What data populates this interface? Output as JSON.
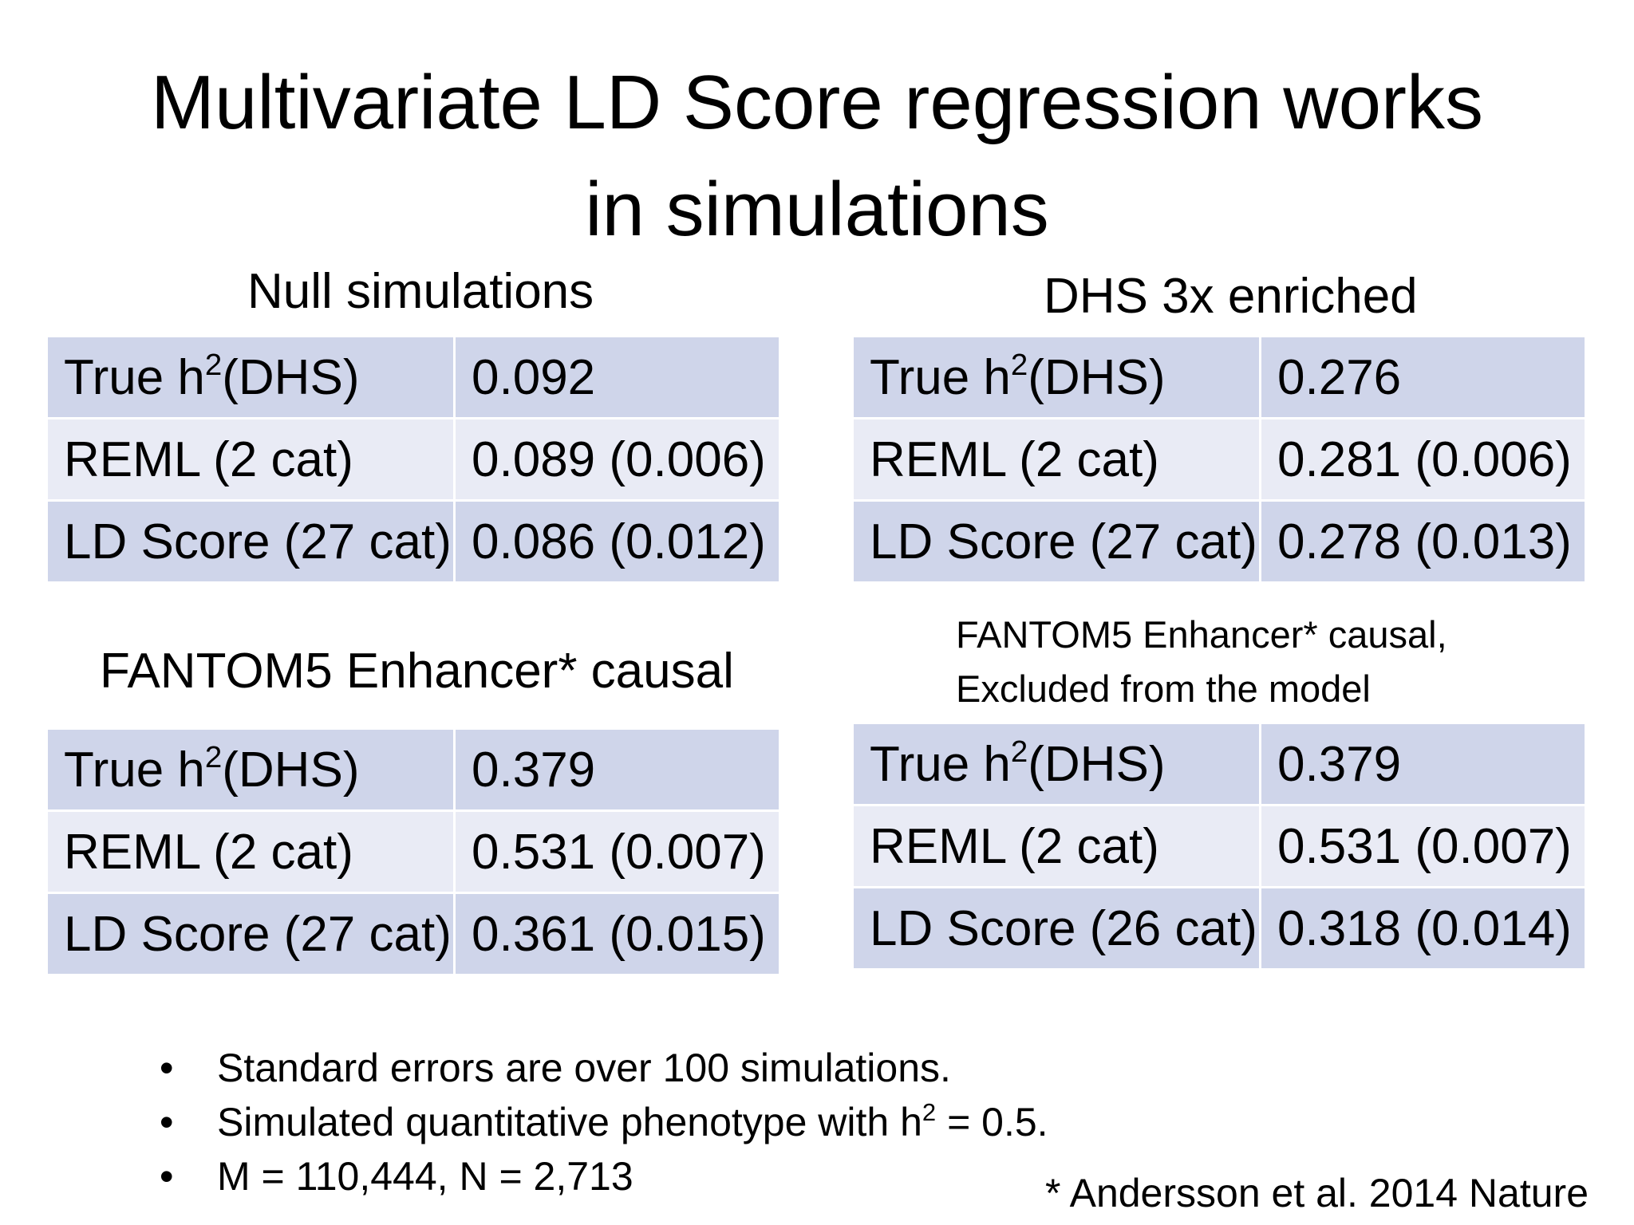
{
  "slide": {
    "title_line1": "Multivariate LD Score regression works",
    "title_line2": "in simulations"
  },
  "tables": [
    {
      "caption": "Null simulations",
      "rows": [
        {
          "label_pre": "True h",
          "label_sup": "2",
          "label_post": "(DHS)",
          "value": "0.092"
        },
        {
          "label": "REML (2 cat)",
          "value": "0.089 (0.006)"
        },
        {
          "label": "LD Score (27 cat)",
          "value": "0.086 (0.012)"
        }
      ]
    },
    {
      "caption": "DHS 3x enriched",
      "rows": [
        {
          "label_pre": "True h",
          "label_sup": "2",
          "label_post": "(DHS)",
          "value": "0.276"
        },
        {
          "label": "REML (2 cat)",
          "value": "0.281 (0.006)"
        },
        {
          "label": "LD Score (27 cat)",
          "value": "0.278 (0.013)"
        }
      ]
    },
    {
      "caption": "FANTOM5 Enhancer* causal",
      "rows": [
        {
          "label_pre": "True h",
          "label_sup": "2",
          "label_post": "(DHS)",
          "value": "0.379"
        },
        {
          "label": "REML (2 cat)",
          "value": "0.531 (0.007)"
        },
        {
          "label": "LD Score (27 cat)",
          "value": "0.361 (0.015)"
        }
      ]
    },
    {
      "caption_line1": "FANTOM5 Enhancer* causal,",
      "caption_line2": "Excluded from the model",
      "rows": [
        {
          "label_pre": "True h",
          "label_sup": "2",
          "label_post": "(DHS)",
          "value": "0.379"
        },
        {
          "label": "REML (2 cat)",
          "value": "0.531 (0.007)"
        },
        {
          "label": "LD Score (26 cat)",
          "value": "0.318 (0.014)"
        }
      ]
    }
  ],
  "bullets": [
    {
      "text": "Standard errors are over 100 simulations."
    },
    {
      "pre": "Simulated quantitative phenotype with h",
      "sup": "2",
      "post": " = 0.5."
    },
    {
      "text": "M = 110,444, N = 2,713"
    }
  ],
  "footnote": "* Andersson et al. 2014 Nature",
  "colors": {
    "row_dark": "#cfd5ea",
    "row_light": "#e9ebf5",
    "text": "#000000",
    "background": "#ffffff"
  }
}
